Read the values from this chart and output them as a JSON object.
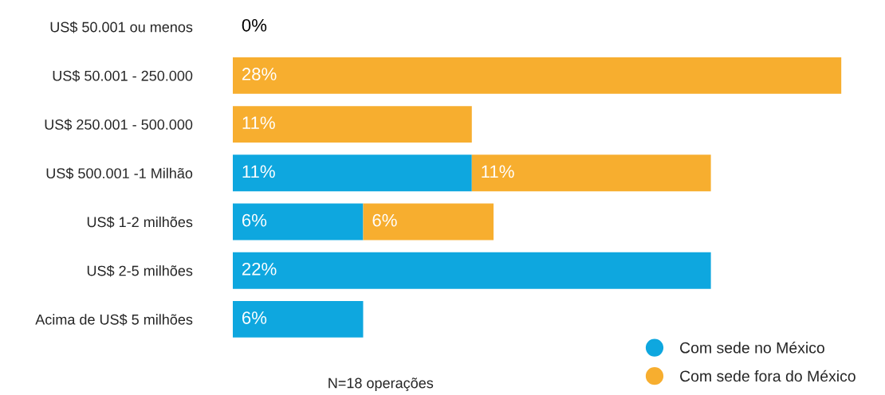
{
  "chart_data": {
    "type": "bar",
    "orientation": "horizontal",
    "stacked": true,
    "categories": [
      "US$ 50.001 ou menos",
      "US$ 50.001 - 250.000",
      "US$ 250.001 - 500.000",
      "US$ 500.001 -1 Milhão",
      "US$ 1-2 milhões",
      "US$ 2-5 milhões",
      "Acima de US$ 5 milhões"
    ],
    "series": [
      {
        "name": "Com sede no México",
        "color": "#0ea7df",
        "values": [
          null,
          null,
          null,
          11,
          6,
          22,
          6
        ],
        "value_labels": [
          null,
          null,
          null,
          "11%",
          "6%",
          "22%",
          "6%"
        ]
      },
      {
        "name": "Com sede fora do México",
        "color": "#f7ae2f",
        "values": [
          0,
          28,
          11,
          11,
          6,
          null,
          null
        ],
        "value_labels": [
          "0%",
          "28%",
          "11%",
          "11%",
          "6%",
          null,
          null
        ]
      }
    ],
    "legend": "bottom right",
    "grid": false,
    "annotations": [
      "N=18 operações"
    ]
  }
}
